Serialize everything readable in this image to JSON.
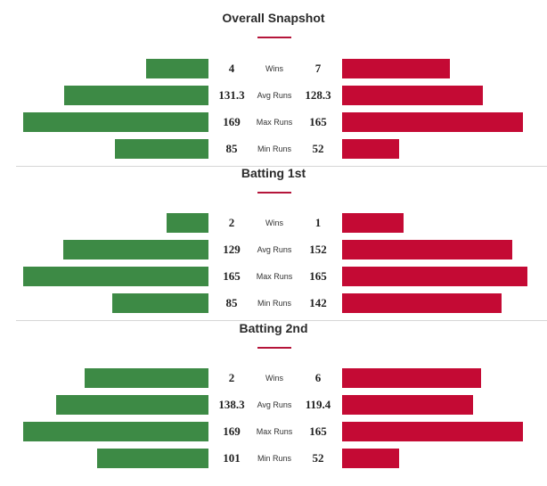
{
  "sections": [
    {
      "title": "Overall Snapshot",
      "rows": [
        {
          "label": "Wins",
          "left": "4",
          "right": "7"
        },
        {
          "label": "Avg Runs",
          "left": "131.3",
          "right": "128.3"
        },
        {
          "label": "Max Runs",
          "left": "169",
          "right": "165"
        },
        {
          "label": "Min Runs",
          "left": "85",
          "right": "52"
        }
      ]
    },
    {
      "title": "Batting 1st",
      "rows": [
        {
          "label": "Wins",
          "left": "2",
          "right": "1"
        },
        {
          "label": "Avg Runs",
          "left": "129",
          "right": "152"
        },
        {
          "label": "Max Runs",
          "left": "165",
          "right": "165"
        },
        {
          "label": "Min Runs",
          "left": "85",
          "right": "142"
        }
      ]
    },
    {
      "title": "Batting 2nd",
      "rows": [
        {
          "label": "Wins",
          "left": "2",
          "right": "6"
        },
        {
          "label": "Avg Runs",
          "left": "138.3",
          "right": "119.4"
        },
        {
          "label": "Max Runs",
          "left": "169",
          "right": "165"
        },
        {
          "label": "Min Runs",
          "left": "101",
          "right": "52"
        }
      ]
    }
  ],
  "colors": {
    "left_team": "#3d8a45",
    "right_team": "#c40a34",
    "accent": "#b5153a"
  }
}
